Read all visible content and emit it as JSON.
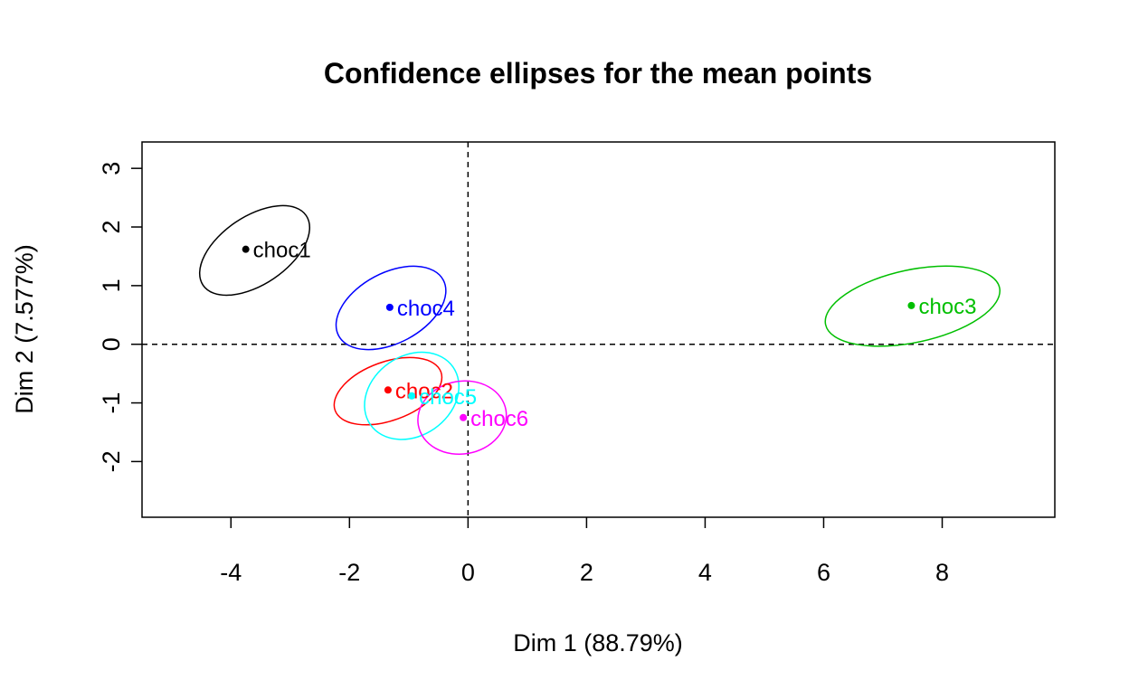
{
  "chart_data": {
    "type": "scatter",
    "title": "Confidence ellipses for the mean points",
    "xlabel": "Dim 1 (88.79%)",
    "ylabel": "Dim 2 (7.577%)",
    "xlim": [
      -5.5,
      9.9
    ],
    "ylim": [
      -2.95,
      3.45
    ],
    "x_ticks": [
      -4,
      -2,
      0,
      2,
      4,
      6,
      8
    ],
    "x_tick_labels": [
      "-4",
      "-2",
      "0",
      "2",
      "4",
      "6",
      "8"
    ],
    "y_ticks": [
      -2,
      -1,
      0,
      1,
      2,
      3
    ],
    "y_tick_labels": [
      "-2",
      "-1",
      "0",
      "1",
      "2",
      "3"
    ],
    "reference_lines": {
      "x": 0,
      "y": 0,
      "style": "dashed"
    },
    "grid": false,
    "legend": "none",
    "points": [
      {
        "label": "choc1",
        "x": -3.75,
        "y": 1.62,
        "color": "#000000",
        "ellipse": {
          "cx": -3.6,
          "cy": 1.6,
          "rx": 1.05,
          "ry": 0.58,
          "angle_deg": 34
        }
      },
      {
        "label": "choc2",
        "x": -1.35,
        "y": -0.78,
        "color": "#ff0000",
        "ellipse": {
          "cx": -1.35,
          "cy": -0.8,
          "rx": 0.95,
          "ry": 0.5,
          "angle_deg": 20
        }
      },
      {
        "label": "choc3",
        "x": 7.48,
        "y": 0.66,
        "color": "#00bf00",
        "ellipse": {
          "cx": 7.5,
          "cy": 0.65,
          "rx": 1.5,
          "ry": 0.62,
          "angle_deg": 12
        }
      },
      {
        "label": "choc4",
        "x": -1.32,
        "y": 0.63,
        "color": "#0000ff",
        "ellipse": {
          "cx": -1.3,
          "cy": 0.62,
          "rx": 1.0,
          "ry": 0.6,
          "angle_deg": 28
        }
      },
      {
        "label": "choc5",
        "x": -0.95,
        "y": -0.88,
        "color": "#00ffff",
        "ellipse": {
          "cx": -0.95,
          "cy": -0.88,
          "rx": 0.85,
          "ry": 0.68,
          "angle_deg": 35
        }
      },
      {
        "label": "choc6",
        "x": -0.08,
        "y": -1.25,
        "color": "#ff00ff",
        "ellipse": {
          "cx": -0.1,
          "cy": -1.25,
          "rx": 0.75,
          "ry": 0.62,
          "angle_deg": 10
        }
      }
    ]
  }
}
